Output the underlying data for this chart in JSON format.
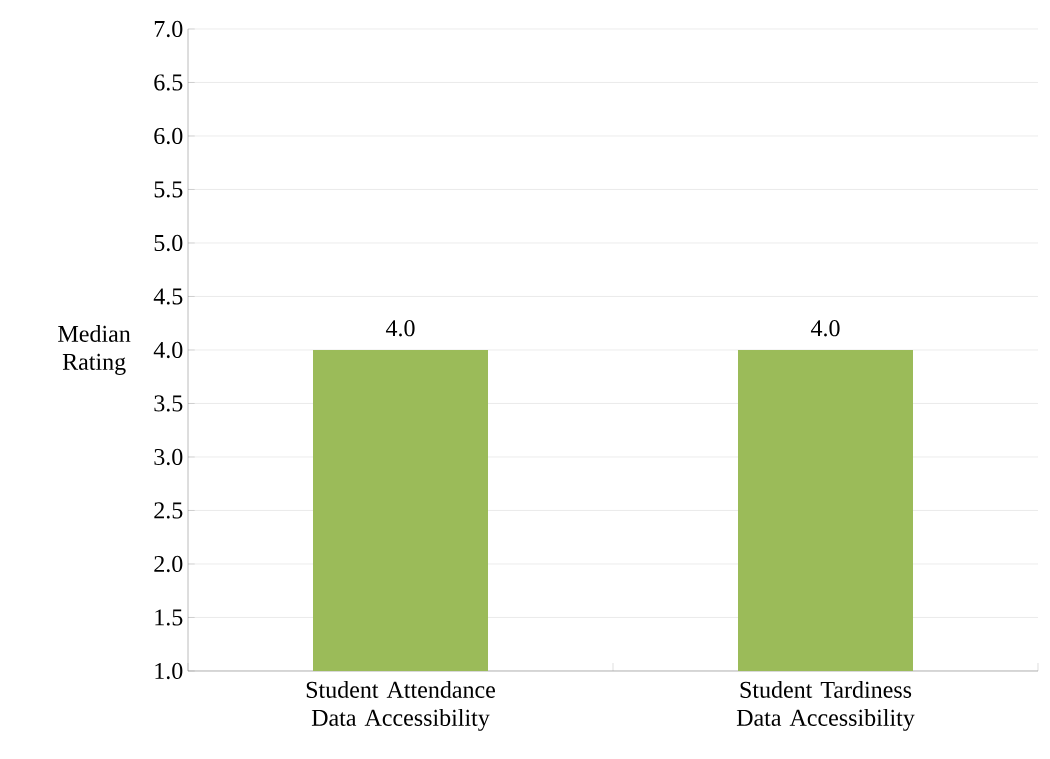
{
  "chart_data": {
    "type": "bar",
    "ylabel": "Median Rating",
    "categories": [
      "Student Attendance Data Accessibility",
      "Student Tardiness Data Accessibility"
    ],
    "values": [
      4.0,
      4.0
    ],
    "color": "#9bbb59",
    "value_labels": [
      "4.0",
      "4.0"
    ],
    "ylim": [
      1,
      7
    ],
    "yticks": [
      {
        "value": 1,
        "label": "1.0"
      },
      {
        "value": 1.5,
        "label": "1.5"
      },
      {
        "value": 2,
        "label": "2.0"
      },
      {
        "value": 2.5,
        "label": "2.5"
      },
      {
        "value": 3,
        "label": "3.0"
      },
      {
        "value": 3.5,
        "label": "3.5"
      },
      {
        "value": 4,
        "label": "4.0"
      },
      {
        "value": 4.5,
        "label": "4.5"
      },
      {
        "value": 5,
        "label": "5.0"
      },
      {
        "value": 5.5,
        "label": "5.5"
      },
      {
        "value": 6,
        "label": "6.0"
      },
      {
        "value": 6.5,
        "label": "6.5"
      },
      {
        "value": 7,
        "label": "7.0"
      }
    ],
    "grid": "y"
  }
}
